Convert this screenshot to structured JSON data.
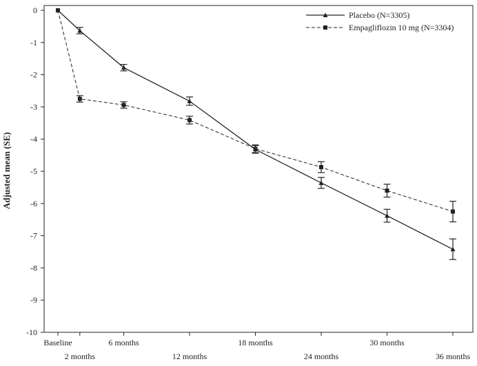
{
  "chart_data": {
    "type": "line",
    "title": "",
    "xlabel": "",
    "ylabel": "Adjusted mean (SE)",
    "ylim": [
      -10,
      0
    ],
    "yticks": [
      0,
      -1,
      -2,
      -3,
      -4,
      -5,
      -6,
      -7,
      -8,
      -9,
      -10
    ],
    "x_positions": [
      0,
      2,
      6,
      12,
      18,
      24,
      30,
      36
    ],
    "x_tick_labels": [
      {
        "x": 0,
        "label": "Baseline",
        "row": 1
      },
      {
        "x": 2,
        "label": "2 months",
        "row": 2
      },
      {
        "x": 6,
        "label": "6 months",
        "row": 1
      },
      {
        "x": 12,
        "label": "12 months",
        "row": 2
      },
      {
        "x": 18,
        "label": "18 months",
        "row": 1
      },
      {
        "x": 24,
        "label": "24 months",
        "row": 2
      },
      {
        "x": 30,
        "label": "30 months",
        "row": 1
      },
      {
        "x": 36,
        "label": "36 months",
        "row": 2
      }
    ],
    "legend_position": "top-right",
    "grid": false,
    "series": [
      {
        "name": "Placebo (N=3305)",
        "line_style": "solid",
        "marker": "triangle",
        "x": [
          0,
          2,
          6,
          12,
          18,
          24,
          30,
          36
        ],
        "y": [
          0,
          -0.63,
          -1.78,
          -2.82,
          -4.32,
          -5.36,
          -6.38,
          -7.42
        ],
        "se": [
          0,
          0.1,
          0.1,
          0.13,
          0.12,
          0.17,
          0.2,
          0.32
        ]
      },
      {
        "name": "Empagliflozin 10 mg (N=3304)",
        "line_style": "dashed",
        "marker": "square",
        "x": [
          0,
          2,
          6,
          12,
          18,
          24,
          30,
          36
        ],
        "y": [
          0,
          -2.75,
          -2.94,
          -3.41,
          -4.3,
          -4.87,
          -5.6,
          -6.25
        ],
        "se": [
          0,
          0.1,
          0.1,
          0.12,
          0.12,
          0.17,
          0.2,
          0.32
        ]
      }
    ]
  }
}
